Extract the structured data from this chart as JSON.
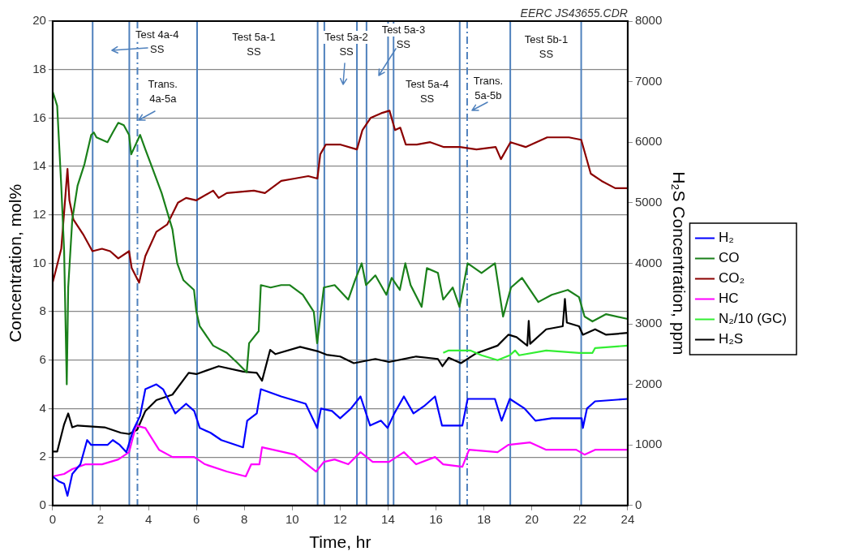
{
  "chart_data": {
    "type": "line",
    "xlabel": "Time, hr",
    "ylabel": "Concentration, mol%",
    "y2label": "H₂S Concentration, ppm",
    "xlim": [
      0,
      24
    ],
    "xticks": [
      0,
      2,
      4,
      6,
      8,
      10,
      12,
      14,
      16,
      18,
      20,
      22,
      24
    ],
    "ylim": [
      0,
      20
    ],
    "yticks": [
      0,
      2,
      4,
      6,
      8,
      10,
      12,
      14,
      16,
      18,
      20
    ],
    "y2lim": [
      0,
      8000
    ],
    "y2ticks": [
      0,
      1000,
      2000,
      3000,
      4000,
      5000,
      6000,
      7000,
      8000
    ],
    "grid": "y",
    "legend": "right",
    "series": [
      {
        "name": "H₂",
        "color": "#0000ff",
        "x": [
          0,
          0.25,
          0.48,
          0.62,
          0.82,
          1.16,
          1.44,
          1.61,
          2.29,
          2.51,
          2.8,
          3.08,
          3.36,
          3.65,
          3.87,
          4.33,
          4.61,
          5.12,
          5.57,
          5.91,
          6.14,
          6.59,
          7.04,
          7.95,
          8.12,
          8.52,
          8.69,
          9.54,
          10.56,
          11.04,
          11.2,
          11.66,
          12.0,
          12.45,
          12.85,
          13.25,
          13.7,
          13.98,
          14.26,
          14.66,
          15.06,
          15.5,
          15.96,
          16.25,
          17.1,
          17.32,
          18.46,
          18.74,
          19.08,
          19.7,
          20.15,
          20.83,
          22.08,
          22.13,
          22.3,
          22.64,
          24
        ],
        "values": [
          1.2,
          1.0,
          0.9,
          0.4,
          1.3,
          1.7,
          2.7,
          2.5,
          2.5,
          2.7,
          2.5,
          2.2,
          3.1,
          3.7,
          4.8,
          5.0,
          4.8,
          3.8,
          4.2,
          3.9,
          3.2,
          3.0,
          2.7,
          2.4,
          3.5,
          3.8,
          4.8,
          4.5,
          4.2,
          3.2,
          4.0,
          3.9,
          3.6,
          4.0,
          4.5,
          3.3,
          3.5,
          3.2,
          3.8,
          4.5,
          3.8,
          4.1,
          4.5,
          3.3,
          3.3,
          4.4,
          4.4,
          3.5,
          4.4,
          4.0,
          3.5,
          3.6,
          3.6,
          3.2,
          4.0,
          4.3,
          4.4
        ]
      },
      {
        "name": "CO",
        "color": "#1a801a",
        "x": [
          0,
          0.19,
          0.36,
          0.48,
          0.59,
          0.65,
          0.82,
          1.04,
          1.33,
          1.61,
          1.72,
          1.83,
          2.29,
          2.51,
          2.74,
          2.97,
          3.19,
          3.28,
          3.65,
          3.87,
          4.1,
          4.55,
          5.0,
          5.2,
          5.46,
          5.9,
          6.0,
          6.14,
          6.7,
          7.27,
          7.7,
          8.1,
          8.2,
          8.6,
          8.69,
          9.1,
          9.54,
          9.9,
          10.44,
          10.9,
          11.04,
          11.32,
          11.77,
          12.34,
          12.62,
          12.9,
          13.08,
          13.47,
          13.93,
          14.15,
          14.49,
          14.72,
          14.94,
          15.4,
          15.62,
          16.08,
          16.3,
          16.7,
          16.98,
          17.32,
          17.9,
          18.46,
          18.8,
          19.13,
          19.59,
          20.27,
          20.83,
          21.5,
          21.97,
          22.2,
          22.53,
          23.1,
          24
        ],
        "values": [
          17.1,
          16.5,
          13.2,
          10.5,
          5.0,
          9.0,
          11.8,
          13.2,
          14.1,
          15.3,
          15.4,
          15.2,
          15.0,
          15.4,
          15.8,
          15.7,
          15.3,
          14.5,
          15.3,
          14.7,
          14.1,
          12.9,
          11.4,
          10.0,
          9.3,
          8.9,
          8.0,
          7.4,
          6.6,
          6.3,
          5.9,
          5.5,
          6.7,
          7.2,
          9.1,
          9.0,
          9.1,
          9.1,
          8.7,
          8.0,
          6.7,
          9.0,
          9.1,
          8.5,
          9.3,
          10.0,
          9.1,
          9.5,
          8.7,
          9.4,
          8.9,
          10.0,
          9.1,
          8.2,
          9.8,
          9.6,
          8.5,
          9.0,
          8.2,
          10.0,
          9.6,
          10.0,
          7.8,
          9.0,
          9.4,
          8.4,
          8.7,
          8.9,
          8.6,
          7.8,
          7.6,
          7.9,
          7.7
        ]
      },
      {
        "name": "CO₂",
        "color": "#8b0000",
        "x": [
          0,
          0.08,
          0.36,
          0.48,
          0.62,
          0.7,
          0.87,
          1.27,
          1.66,
          2.06,
          2.4,
          2.74,
          3.19,
          3.3,
          3.61,
          3.87,
          4.33,
          4.78,
          5.23,
          5.57,
          6.0,
          6.7,
          6.93,
          7.27,
          8.4,
          8.86,
          9.54,
          10.1,
          10.67,
          11.05,
          11.17,
          11.4,
          12.02,
          12.7,
          12.93,
          13.27,
          13.72,
          14.06,
          14.29,
          14.51,
          14.74,
          15.2,
          15.76,
          16.33,
          17.0,
          17.69,
          18.49,
          18.71,
          19.11,
          19.74,
          20.64,
          21.55,
          22.06,
          22.46,
          22.91,
          23.48,
          24
        ],
        "values": [
          9.2,
          9.5,
          10.6,
          12.1,
          13.9,
          12.6,
          11.8,
          11.2,
          10.5,
          10.6,
          10.5,
          10.2,
          10.5,
          9.8,
          9.2,
          10.3,
          11.3,
          11.6,
          12.5,
          12.7,
          12.6,
          13.0,
          12.7,
          12.9,
          13.0,
          12.9,
          13.4,
          13.5,
          13.6,
          13.5,
          14.5,
          14.9,
          14.9,
          14.7,
          15.5,
          16.0,
          16.2,
          16.3,
          15.5,
          15.6,
          14.9,
          14.9,
          15.0,
          14.8,
          14.8,
          14.7,
          14.8,
          14.3,
          15.0,
          14.8,
          15.2,
          15.2,
          15.1,
          13.7,
          13.4,
          13.1,
          13.1
        ]
      },
      {
        "name": "HC",
        "color": "#ff00ff",
        "x": [
          0,
          0.48,
          0.82,
          1.38,
          2.06,
          2.74,
          3.19,
          3.48,
          3.87,
          4.44,
          5.0,
          5.91,
          6.36,
          7.27,
          8.06,
          8.29,
          8.63,
          8.74,
          9.2,
          10.1,
          11.0,
          11.32,
          11.77,
          12.34,
          12.85,
          13.36,
          14.04,
          14.66,
          15.17,
          15.96,
          16.3,
          17.1,
          17.38,
          18.57,
          19.02,
          19.93,
          20.6,
          21.85,
          22.2,
          22.64,
          24
        ],
        "values": [
          1.2,
          1.3,
          1.5,
          1.7,
          1.7,
          1.9,
          2.2,
          3.3,
          3.2,
          2.3,
          2.0,
          2.0,
          1.7,
          1.4,
          1.2,
          1.7,
          1.7,
          2.4,
          2.3,
          2.1,
          1.4,
          1.8,
          1.9,
          1.7,
          2.2,
          1.8,
          1.8,
          2.2,
          1.7,
          2.0,
          1.7,
          1.6,
          2.3,
          2.2,
          2.5,
          2.6,
          2.3,
          2.3,
          2.1,
          2.3,
          2.3
        ]
      },
      {
        "name": "N₂/10 (GC)",
        "color": "#33ee33",
        "x": [
          16.3,
          16.53,
          17.43,
          17.9,
          18.57,
          19.08,
          19.3,
          19.47,
          20.6,
          21.97,
          22.53,
          22.64,
          24
        ],
        "values": [
          6.3,
          6.4,
          6.4,
          6.2,
          6.0,
          6.2,
          6.4,
          6.2,
          6.4,
          6.3,
          6.3,
          6.5,
          6.6
        ]
      },
      {
        "name": "H₂S",
        "color": "#000000",
        "axis": "y2",
        "x": [
          0,
          0.19,
          0.48,
          0.65,
          0.82,
          1.04,
          2.17,
          2.85,
          3.19,
          3.53,
          3.87,
          4.33,
          5.0,
          5.68,
          6.0,
          6.93,
          7.95,
          8.52,
          8.74,
          9.08,
          9.3,
          10.33,
          11.04,
          11.43,
          12.0,
          12.57,
          13.47,
          14.04,
          15.17,
          16.08,
          16.27,
          16.53,
          17.04,
          17.66,
          18.57,
          19.02,
          19.36,
          19.81,
          19.87,
          19.93,
          20.6,
          21.29,
          21.38,
          21.46,
          21.97,
          22.13,
          22.64,
          23.1,
          24
        ],
        "values": [
          890,
          890,
          1340,
          1520,
          1290,
          1320,
          1290,
          1200,
          1180,
          1250,
          1560,
          1740,
          1830,
          2190,
          2170,
          2300,
          2210,
          2190,
          2060,
          2570,
          2500,
          2620,
          2550,
          2490,
          2460,
          2350,
          2420,
          2370,
          2460,
          2420,
          2300,
          2440,
          2350,
          2510,
          2640,
          2820,
          2780,
          2640,
          3050,
          2670,
          2910,
          2960,
          3410,
          3020,
          2960,
          2820,
          2910,
          2820,
          2850
        ]
      }
    ],
    "ref_lines": [
      {
        "axis": "x",
        "value": 1.67,
        "color": "#4f81bd",
        "line_style": "solid"
      },
      {
        "axis": "x",
        "value": 3.2,
        "color": "#4f81bd",
        "line_style": "solid"
      },
      {
        "axis": "x",
        "value": 3.54,
        "color": "#4f81bd",
        "line_style": "dashed"
      },
      {
        "axis": "x",
        "value": 6.03,
        "color": "#4f81bd",
        "line_style": "solid"
      },
      {
        "axis": "x",
        "value": 11.06,
        "color": "#4f81bd",
        "line_style": "solid"
      },
      {
        "axis": "x",
        "value": 11.34,
        "color": "#4f81bd",
        "line_style": "solid"
      },
      {
        "axis": "x",
        "value": 12.7,
        "color": "#4f81bd",
        "line_style": "solid"
      },
      {
        "axis": "x",
        "value": 13.1,
        "color": "#4f81bd",
        "line_style": "solid"
      },
      {
        "axis": "x",
        "value": 14.0,
        "color": "#4f81bd",
        "line_style": "solid"
      },
      {
        "axis": "x",
        "value": 14.23,
        "color": "#4f81bd",
        "line_style": "solid"
      },
      {
        "axis": "x",
        "value": 16.99,
        "color": "#4f81bd",
        "line_style": "solid"
      },
      {
        "axis": "x",
        "value": 17.3,
        "color": "#4f81bd",
        "line_style": "dashed"
      },
      {
        "axis": "x",
        "value": 19.1,
        "color": "#4f81bd",
        "line_style": "solid"
      },
      {
        "axis": "x",
        "value": 22.06,
        "color": "#4f81bd",
        "line_style": "solid"
      }
    ],
    "annotations": [
      "Test 4a-4\nSS",
      "Test 5a-1\nSS",
      "Test 5a-2\nSS",
      "Test 5a-3\nSS",
      "Test 5a-4\nSS",
      "Trans.\n4a-5a",
      "Trans.\n5a-5b",
      "Test 5b-1\nSS",
      "EERC JS43655.CDR"
    ]
  }
}
